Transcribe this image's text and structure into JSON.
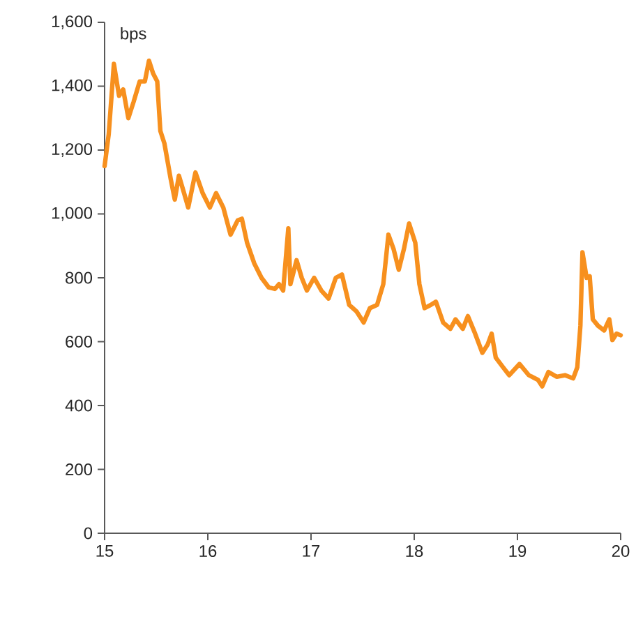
{
  "chart_data": {
    "type": "line",
    "ylabel": "bps",
    "xlim": [
      15,
      20
    ],
    "xticks": [
      15,
      16,
      17,
      18,
      19,
      20
    ],
    "ylim": [
      0,
      1600
    ],
    "yticks": [
      0,
      200,
      400,
      600,
      800,
      {
        "value": 1000,
        "label": "1,000"
      },
      {
        "value": 1200,
        "label": "1,200"
      },
      {
        "value": 1400,
        "label": "1,400"
      },
      {
        "value": 1600,
        "label": "1,600"
      }
    ],
    "grid": false,
    "marker": "none",
    "line_style": "solid",
    "series": [
      {
        "color": "#f7901e",
        "x": [
          15.0,
          15.04,
          15.09,
          15.14,
          15.18,
          15.23,
          15.28,
          15.34,
          15.39,
          15.43,
          15.47,
          15.51,
          15.54,
          15.58,
          15.64,
          15.68,
          15.72,
          15.77,
          15.81,
          15.88,
          15.95,
          16.02,
          16.08,
          16.15,
          16.22,
          16.29,
          16.33,
          16.38,
          16.45,
          16.52,
          16.59,
          16.65,
          16.69,
          16.73,
          16.78,
          16.8,
          16.86,
          16.91,
          16.96,
          17.03,
          17.1,
          17.17,
          17.24,
          17.3,
          17.37,
          17.44,
          17.51,
          17.57,
          17.64,
          17.7,
          17.75,
          17.8,
          17.85,
          17.9,
          17.95,
          18.01,
          18.05,
          18.1,
          18.16,
          18.21,
          18.28,
          18.35,
          18.4,
          18.47,
          18.52,
          18.59,
          18.66,
          18.71,
          18.75,
          18.79,
          18.86,
          18.92,
          19.02,
          19.11,
          19.2,
          19.24,
          19.3,
          19.38,
          19.46,
          19.54,
          19.58,
          19.61,
          19.63,
          19.67,
          19.7,
          19.73,
          19.78,
          19.84,
          19.89,
          19.92,
          19.96,
          20.0
        ],
        "values": [
          1150,
          1250,
          1470,
          1370,
          1390,
          1300,
          1350,
          1415,
          1415,
          1480,
          1440,
          1415,
          1260,
          1220,
          1110,
          1045,
          1120,
          1065,
          1020,
          1130,
          1065,
          1020,
          1065,
          1020,
          935,
          980,
          985,
          910,
          845,
          800,
          770,
          765,
          780,
          760,
          955,
          780,
          855,
          800,
          760,
          800,
          760,
          735,
          800,
          810,
          715,
          695,
          660,
          705,
          715,
          780,
          935,
          890,
          825,
          890,
          970,
          910,
          780,
          705,
          715,
          725,
          660,
          640,
          670,
          640,
          680,
          625,
          565,
          590,
          625,
          550,
          520,
          495,
          530,
          495,
          480,
          460,
          505,
          490,
          495,
          485,
          520,
          650,
          880,
          800,
          805,
          670,
          650,
          635,
          670,
          605,
          625,
          620
        ]
      }
    ]
  }
}
